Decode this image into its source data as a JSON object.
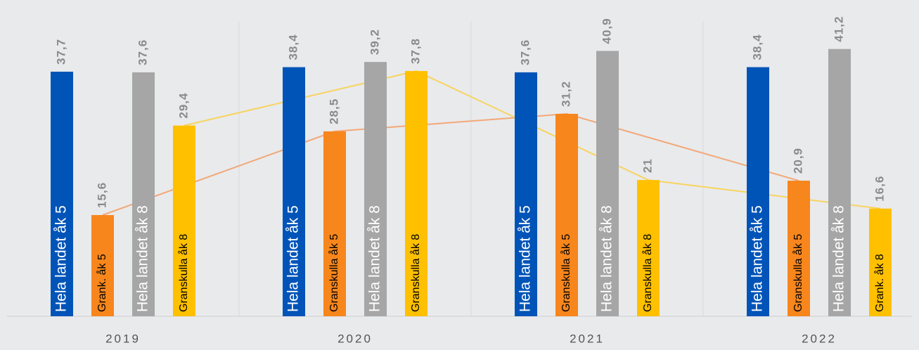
{
  "chart_data": {
    "type": "bar",
    "categories": [
      "2019",
      "2020",
      "2021",
      "2022"
    ],
    "ylim": [
      0,
      48.75
    ],
    "series": [
      {
        "color": "#0054b8",
        "text_color": "#ffffff",
        "values": [
          37.7,
          38.4,
          37.6,
          38.4
        ],
        "value_labels": [
          "37,7",
          "38,4",
          "37,6",
          "38,4"
        ],
        "bar_labels": [
          "Hela landet åk 5",
          "Hela landet åk 5",
          "Hela landet åk 5",
          "Hela landet åk 5"
        ]
      },
      {
        "color": "#f7861c",
        "text_color": "#000000",
        "line_color": "#f2a878",
        "values": [
          15.6,
          28.5,
          31.2,
          20.9
        ],
        "value_labels": [
          "15,6",
          "28,5",
          "31,2",
          "20,9"
        ],
        "bar_labels": [
          "Grank. åk 5",
          "Granskulla åk 5",
          "Granskulla åk 5",
          "Granskulla åk 5"
        ]
      },
      {
        "color": "#a6a6a6",
        "text_color": "#ffffff",
        "values": [
          37.6,
          39.2,
          40.9,
          41.2
        ],
        "value_labels": [
          "37,6",
          "39,2",
          "40,9",
          "41,2"
        ],
        "bar_labels": [
          "Hela landet åk 8",
          "Hela landet åk 8",
          "Hela landet åk 8",
          "Hela landet åk 8"
        ]
      },
      {
        "color": "#ffc000",
        "text_color": "#000000",
        "line_color": "#f7d460",
        "values": [
          29.4,
          37.8,
          21,
          16.6
        ],
        "value_labels": [
          "29,4",
          "37,8",
          "21",
          "16,6"
        ],
        "bar_labels": [
          "Granskulla åk 8",
          "Granskulla åk 8",
          "Granskulla åk 8",
          "Grank. åk 8"
        ]
      }
    ]
  }
}
